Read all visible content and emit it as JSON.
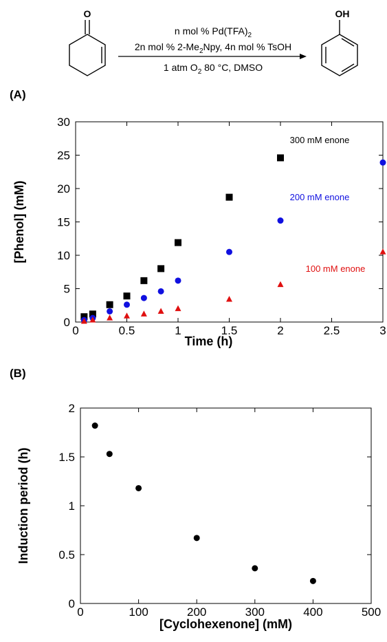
{
  "scheme": {
    "reactant_atom": "O",
    "product_atom": "OH",
    "conditions": {
      "line1_main": "n mol % Pd(TFA)",
      "line1_sub": "2",
      "line2_pre": "2n mol % 2-Me",
      "line2_sub": "2",
      "line2_post": "Npy, 4n mol % TsOH",
      "line3_pre": "1 atm O",
      "line3_sub": "2",
      "line3_post": " 80 °C, DMSO"
    }
  },
  "chart_data": [
    {
      "panel": "(A)",
      "type": "scatter",
      "xlabel": "Time (h)",
      "ylabel": "[Phenol] (mM)",
      "xlim": [
        0,
        3
      ],
      "ylim": [
        0,
        30
      ],
      "xticks": [
        "0",
        "0.5",
        "1",
        "1.5",
        "2",
        "2.5",
        "3"
      ],
      "yticks": [
        "0",
        "5",
        "10",
        "15",
        "20",
        "25",
        "30"
      ],
      "series": [
        {
          "name": "300 mM enone",
          "marker": "square",
          "color": "#000000",
          "x": [
            0.083,
            0.167,
            0.333,
            0.5,
            0.667,
            0.833,
            1.0,
            1.5,
            2.0
          ],
          "y": [
            0.8,
            1.2,
            2.6,
            3.9,
            6.2,
            8.0,
            11.9,
            18.7,
            24.6
          ]
        },
        {
          "name": "200 mM enone",
          "marker": "circle",
          "color": "#1010e0",
          "x": [
            0.083,
            0.167,
            0.333,
            0.5,
            0.667,
            0.833,
            1.0,
            1.5,
            2.0,
            3.0
          ],
          "y": [
            0.3,
            0.6,
            1.6,
            2.6,
            3.6,
            4.6,
            6.2,
            10.5,
            15.2,
            23.9
          ]
        },
        {
          "name": "100 mM enone",
          "marker": "triangle",
          "color": "#e01010",
          "x": [
            0.083,
            0.167,
            0.333,
            0.5,
            0.667,
            0.833,
            1.0,
            1.5,
            2.0,
            3.0
          ],
          "y": [
            0.1,
            0.3,
            0.6,
            0.9,
            1.2,
            1.6,
            2.0,
            3.4,
            5.6,
            10.5
          ]
        }
      ]
    },
    {
      "panel": "(B)",
      "type": "scatter",
      "xlabel": "[Cyclohexenone] (mM)",
      "ylabel": "Induction period (h)",
      "xlim": [
        0,
        500
      ],
      "ylim": [
        0,
        2
      ],
      "xticks": [
        "0",
        "100",
        "200",
        "300",
        "400",
        "500"
      ],
      "yticks": [
        "0",
        "0.5",
        "1",
        "1.5",
        "2"
      ],
      "series": [
        {
          "marker": "circle",
          "color": "#000000",
          "x": [
            25,
            50,
            100,
            200,
            300,
            400
          ],
          "y": [
            1.82,
            1.53,
            1.18,
            0.67,
            0.36,
            0.23
          ]
        }
      ]
    }
  ]
}
